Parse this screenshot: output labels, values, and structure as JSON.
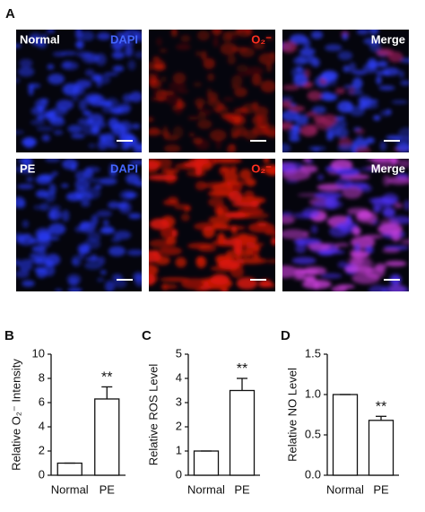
{
  "panel_a": {
    "label": "A",
    "rows": [
      {
        "name": "Normal",
        "channels": [
          "DAPI",
          "O₂⁻",
          "Merge"
        ]
      },
      {
        "name": "PE",
        "channels": [
          "DAPI",
          "O₂⁻",
          "Merge"
        ]
      }
    ]
  },
  "chart_data": [
    {
      "type": "bar",
      "panel": "B",
      "y_label": "Relative O₂⁻ Intensity",
      "categories": [
        "Normal",
        "PE"
      ],
      "values": [
        1,
        6.3
      ],
      "errors": [
        0,
        1.0
      ],
      "significance": [
        null,
        "**"
      ],
      "color": "#ffffff",
      "ylim": [
        0,
        10
      ],
      "yticks": [
        0,
        2,
        4,
        6,
        8,
        10
      ]
    },
    {
      "type": "bar",
      "panel": "C",
      "y_label": "Relative ROS Level",
      "categories": [
        "Normal",
        "PE"
      ],
      "values": [
        1,
        3.5
      ],
      "errors": [
        0,
        0.5
      ],
      "significance": [
        null,
        "**"
      ],
      "color": "#ffffff",
      "ylim": [
        0,
        5
      ],
      "yticks": [
        0,
        1,
        2,
        3,
        4,
        5
      ]
    },
    {
      "type": "bar",
      "panel": "D",
      "y_label": "Relative NO Level",
      "categories": [
        "Normal",
        "PE"
      ],
      "values": [
        1.0,
        0.68
      ],
      "errors": [
        0,
        0.05
      ],
      "significance": [
        null,
        "**"
      ],
      "color": "#ffffff",
      "ylim": [
        0,
        1.5
      ],
      "yticks": [
        {
          "value": 0,
          "label": "0.0"
        },
        {
          "value": 0.5,
          "label": "0.5"
        },
        {
          "value": 1.0,
          "label": "1.0"
        },
        {
          "value": 1.5,
          "label": "1.5"
        }
      ]
    }
  ]
}
